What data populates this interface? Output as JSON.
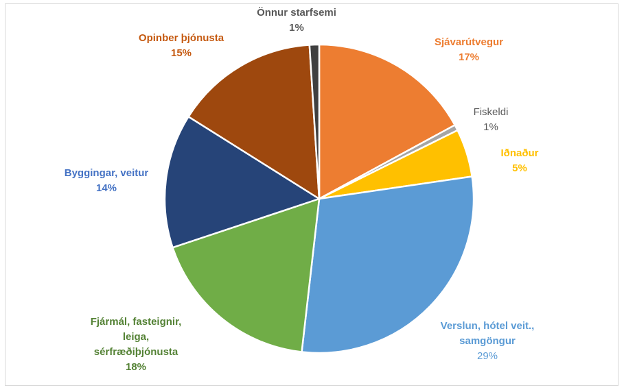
{
  "chart_data": {
    "type": "pie",
    "title": "",
    "slices": [
      {
        "label": "Sjávarútvegur",
        "value": 17,
        "pct_label": "17%",
        "color": "#ED7D31",
        "label_color": "#ED7D31",
        "bold": true,
        "value_bold": true
      },
      {
        "label": "Fiskeldi",
        "value": 0.6,
        "pct_label": "1%",
        "color": "#A5A5A5",
        "label_color": "#595959",
        "bold": false,
        "value_bold": false
      },
      {
        "label": "Iðnaður",
        "value": 5,
        "pct_label": "5%",
        "color": "#FFC000",
        "label_color": "#FFC000",
        "bold": true,
        "value_bold": true
      },
      {
        "label": "Verslun, hótel veit., samgöngur",
        "value": 29,
        "pct_label": "29%",
        "color": "#5B9BD5",
        "label_color": "#5B9BD5",
        "bold": true,
        "value_bold": false
      },
      {
        "label": "Fjármál, fasteignir, leiga, sérfræðiþjónusta",
        "value": 18,
        "pct_label": "18%",
        "color": "#70AD47",
        "label_color": "#548235",
        "bold": true,
        "value_bold": true
      },
      {
        "label": "Byggingar, veitur",
        "value": 14,
        "pct_label": "14%",
        "color": "#264478",
        "label_color": "#4472C4",
        "bold": true,
        "value_bold": true
      },
      {
        "label": "Opinber þjónusta",
        "value": 15,
        "pct_label": "15%",
        "color": "#9E480E",
        "label_color": "#C55A11",
        "bold": true,
        "value_bold": true
      },
      {
        "label": "Önnur starfsemi",
        "value": 1,
        "pct_label": "1%",
        "color": "#404040",
        "label_color": "#595959",
        "bold": true,
        "value_bold": true
      }
    ]
  }
}
